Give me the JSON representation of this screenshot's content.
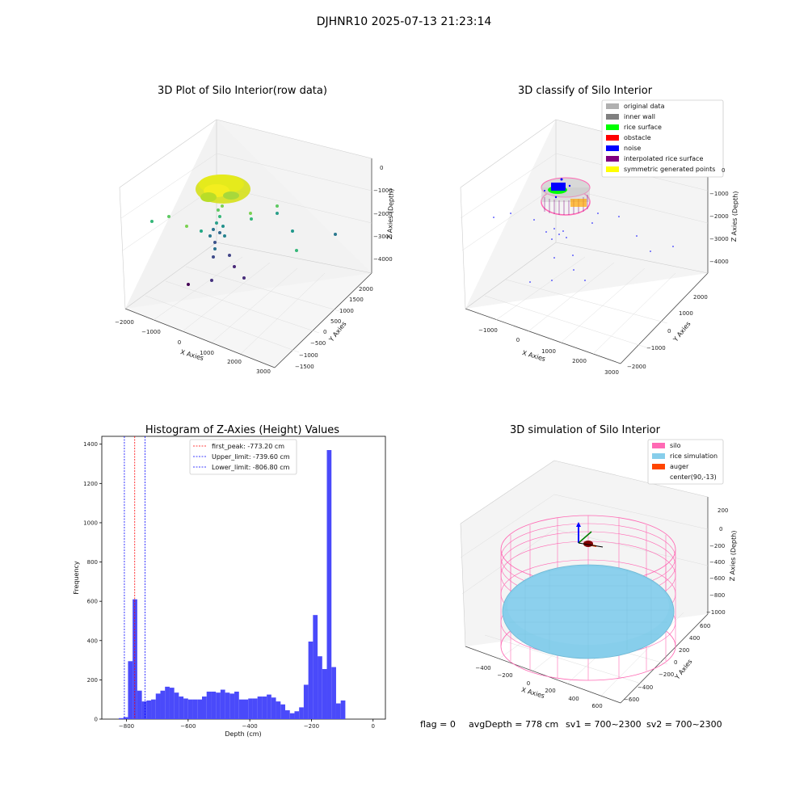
{
  "suptitle": "DJHNR10 2025-07-13 21:23:14",
  "footer": {
    "flag": "flag = 0",
    "avg_depth": "avgDepth = 778 cm",
    "sv1": "sv1 = 700~2300",
    "sv2": "sv2 = 700~2300"
  },
  "colors": {
    "hist_bar": "#4a4afa",
    "first_peak": "#ff0000",
    "limit": "#0000ff",
    "silo": "#ff69b4",
    "rice": "#87ceeb",
    "auger": "#ff4500",
    "inner_wall": "#808080",
    "rice_surface": "#00ff00",
    "obstacle": "#ff0000",
    "noise": "#0000ff",
    "interp": "#800080",
    "symmetric": "#ffff00",
    "original": "#b0b0b0"
  },
  "panels": {
    "raw": {
      "title": "3D Plot of Silo Interior(row data)",
      "xlabel": "X Axies",
      "ylabel": "Y Axies",
      "zlabel": "Z Axies (Depth)",
      "xticks": [
        "−2000",
        "−1000",
        "0",
        "1000",
        "2000",
        "3000"
      ],
      "yticks": [
        "−1500",
        "−1000",
        "−500",
        "0",
        "500",
        "1000",
        "1500",
        "2000"
      ],
      "zticks": [
        "0",
        "−1000",
        "−2000",
        "−3000",
        "−4000"
      ]
    },
    "classify": {
      "title": "3D classify of Silo Interior",
      "xlabel": "X Axies",
      "ylabel": "Y Axies",
      "zlabel": "Z Axies (Depth)",
      "xticks": [
        "−1000",
        "0",
        "1000",
        "2000",
        "3000"
      ],
      "yticks": [
        "−2000",
        "−1000",
        "0",
        "1000",
        "2000"
      ],
      "zticks": [
        "0",
        "−1000",
        "−2000",
        "−3000",
        "−4000"
      ],
      "legend": [
        {
          "label": "original data",
          "color": "#b0b0b0"
        },
        {
          "label": "inner wall",
          "color": "#808080"
        },
        {
          "label": "rice surface",
          "color": "#00ff00"
        },
        {
          "label": "obstacle",
          "color": "#ff0000"
        },
        {
          "label": "noise",
          "color": "#0000ff"
        },
        {
          "label": "interpolated rice surface",
          "color": "#800080"
        },
        {
          "label": "symmetric generated points",
          "color": "#ffff00"
        }
      ]
    },
    "simulation": {
      "title": "3D simulation of Silo Interior",
      "xlabel": "X Axies",
      "ylabel": "Y Axies",
      "zlabel": "Z Axies (Depth)",
      "xticks": [
        "−400",
        "−200",
        "0",
        "200",
        "400",
        "600"
      ],
      "yticks": [
        "−600",
        "−400",
        "−200",
        "0",
        "200",
        "400",
        "600"
      ],
      "zticks": [
        "200",
        "0",
        "−200",
        "−400",
        "−600",
        "−800",
        "−1000"
      ],
      "legend": [
        {
          "label": "silo",
          "color": "#ff69b4"
        },
        {
          "label": "rice simulation",
          "color": "#87ceeb"
        },
        {
          "label": "auger",
          "color": "#ff4500"
        },
        {
          "label": "center(90,-13)",
          "color": ""
        }
      ]
    }
  },
  "chart_data": {
    "type": "bar",
    "title": "Histogram of Z-Axies (Height) Values",
    "xlabel": "Depth (cm)",
    "ylabel": "Frequency",
    "xlim": [
      -880,
      40
    ],
    "ylim": [
      0,
      1440
    ],
    "xticks": [
      -800,
      -600,
      -400,
      -200,
      0
    ],
    "yticks": [
      0,
      200,
      400,
      600,
      800,
      1000,
      1200,
      1400
    ],
    "bin_start": -825,
    "bin_width": 15,
    "values": [
      5,
      10,
      295,
      610,
      145,
      90,
      95,
      100,
      130,
      145,
      165,
      160,
      135,
      115,
      105,
      100,
      100,
      100,
      115,
      140,
      140,
      135,
      150,
      135,
      130,
      140,
      100,
      100,
      105,
      105,
      115,
      115,
      125,
      110,
      90,
      75,
      45,
      30,
      40,
      60,
      175,
      395,
      530,
      320,
      255,
      1370,
      265,
      80,
      95
    ],
    "vlines": [
      {
        "label": "first_peak: -773.20 cm",
        "x": -773.2,
        "color": "#ff0000"
      },
      {
        "label": "Upper_limit: -739.60 cm",
        "x": -739.6,
        "color": "#0000ff"
      },
      {
        "label": "Lower_limit: -806.80 cm",
        "x": -806.8,
        "color": "#0000ff"
      }
    ],
    "legend_position": "top-center"
  }
}
